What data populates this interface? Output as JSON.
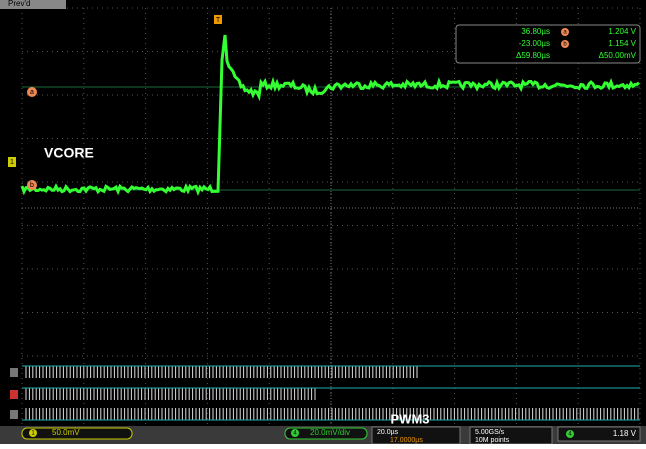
{
  "header": {
    "tab": "Prev'd"
  },
  "markers": {
    "trigger": "T",
    "cursor_a": "a",
    "cursor_b": "b",
    "channel": "1"
  },
  "labels": {
    "analog": "VCORE",
    "digital": "PWM3"
  },
  "readout": {
    "t1": "36.80µs",
    "t2": "-23.00µs",
    "dt": "Δ59.80µs",
    "v1": "1.204 V",
    "v2": "1.154 V",
    "dv": "Δ50.00mV",
    "a": "a",
    "b": "b"
  },
  "status": {
    "ch1": "1",
    "ch1_scale": "50.0mV",
    "ch4": "4",
    "ch4_scale": "20.0mV/div",
    "timebase": "20.0µs",
    "delay": "17.0000µs",
    "rate": "5.00GS/s",
    "points": "10M points",
    "trig_ch": "4",
    "trig_level": "1.18 V"
  }
}
